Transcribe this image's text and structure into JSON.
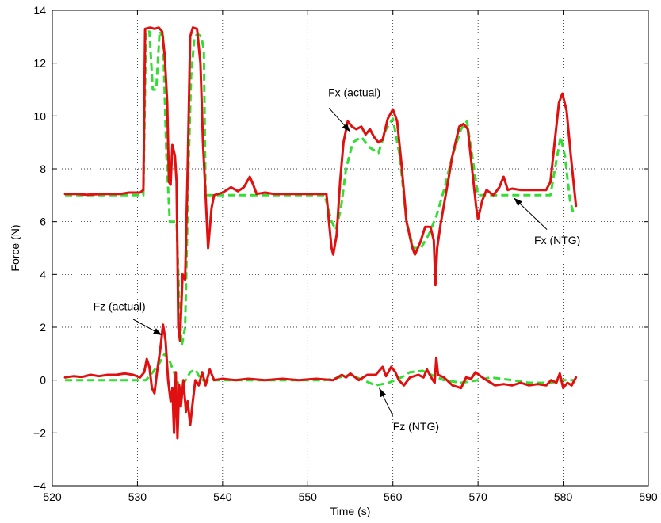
{
  "chart_data": {
    "type": "line",
    "title": "",
    "xlabel": "Time (s)",
    "ylabel": "Force (N)",
    "xlim": [
      520,
      590
    ],
    "ylim": [
      -4,
      14
    ],
    "xticks": [
      520,
      530,
      540,
      550,
      560,
      570,
      580,
      590
    ],
    "yticks": [
      -4,
      -2,
      0,
      2,
      4,
      6,
      8,
      10,
      12,
      14
    ],
    "xtick_labels": [
      "520",
      "530",
      "540",
      "550",
      "560",
      "570",
      "580",
      "590"
    ],
    "ytick_labels": [
      "−4",
      "−2",
      "0",
      "2",
      "4",
      "6",
      "8",
      "10",
      "12",
      "14"
    ],
    "grid": true,
    "legend": "none",
    "series": [
      {
        "name": "Fx (NTG)",
        "color": "#33dd33",
        "style": "dashed",
        "points": [
          [
            521.5,
            7.0
          ],
          [
            530.7,
            7.0
          ],
          [
            531.0,
            13.2
          ],
          [
            531.4,
            13.2
          ],
          [
            531.8,
            11.0
          ],
          [
            532.2,
            11.0
          ],
          [
            532.6,
            13.2
          ],
          [
            533.0,
            13.0
          ],
          [
            533.4,
            8.5
          ],
          [
            533.8,
            6.0
          ],
          [
            534.2,
            6.0
          ],
          [
            534.6,
            6.0
          ],
          [
            534.9,
            3.0
          ],
          [
            535.2,
            1.3
          ],
          [
            535.6,
            2.0
          ],
          [
            536.0,
            8.0
          ],
          [
            536.3,
            11.5
          ],
          [
            536.7,
            13.0
          ],
          [
            537.1,
            13.1
          ],
          [
            537.5,
            13.0
          ],
          [
            537.8,
            12.5
          ],
          [
            538.0,
            7.0
          ],
          [
            540.0,
            7.0
          ],
          [
            552.0,
            7.0
          ],
          [
            552.8,
            6.0
          ],
          [
            553.3,
            5.7
          ],
          [
            553.9,
            6.5
          ],
          [
            554.5,
            8.0
          ],
          [
            555.3,
            9.0
          ],
          [
            556.3,
            9.2
          ],
          [
            557.3,
            8.8
          ],
          [
            558.3,
            8.6
          ],
          [
            559.2,
            9.5
          ],
          [
            560.0,
            9.9
          ],
          [
            560.8,
            8.5
          ],
          [
            561.6,
            6.0
          ],
          [
            562.4,
            5.0
          ],
          [
            563.3,
            5.0
          ],
          [
            564.2,
            5.5
          ],
          [
            565.1,
            6.2
          ],
          [
            566.0,
            7.2
          ],
          [
            567.0,
            8.5
          ],
          [
            568.0,
            9.5
          ],
          [
            568.7,
            9.8
          ],
          [
            569.4,
            8.3
          ],
          [
            570.0,
            7.0
          ],
          [
            578.5,
            7.0
          ],
          [
            579.3,
            8.5
          ],
          [
            579.7,
            9.2
          ],
          [
            580.2,
            8.5
          ],
          [
            580.8,
            6.8
          ],
          [
            581.3,
            6.2
          ]
        ]
      },
      {
        "name": "Fx (actual)",
        "color": "#e01010",
        "style": "solid",
        "points": [
          [
            521.5,
            7.05
          ],
          [
            523.0,
            7.05
          ],
          [
            524.0,
            7.02
          ],
          [
            525.0,
            7.03
          ],
          [
            526.0,
            7.05
          ],
          [
            527.0,
            7.05
          ],
          [
            528.0,
            7.05
          ],
          [
            529.0,
            7.1
          ],
          [
            530.3,
            7.1
          ],
          [
            530.7,
            7.2
          ],
          [
            530.9,
            13.3
          ],
          [
            531.5,
            13.35
          ],
          [
            532.0,
            13.3
          ],
          [
            532.5,
            13.35
          ],
          [
            532.9,
            13.2
          ],
          [
            533.2,
            12.3
          ],
          [
            533.5,
            10.5
          ],
          [
            533.7,
            7.5
          ],
          [
            533.9,
            7.4
          ],
          [
            534.1,
            8.9
          ],
          [
            534.4,
            8.5
          ],
          [
            534.6,
            7.5
          ],
          [
            534.8,
            2.0
          ],
          [
            535.0,
            1.5
          ],
          [
            535.3,
            4.0
          ],
          [
            535.6,
            3.8
          ],
          [
            535.9,
            8.0
          ],
          [
            536.2,
            13.0
          ],
          [
            536.5,
            13.35
          ],
          [
            537.0,
            13.3
          ],
          [
            537.4,
            12.0
          ],
          [
            537.7,
            9.0
          ],
          [
            538.0,
            7.0
          ],
          [
            538.3,
            5.0
          ],
          [
            538.7,
            6.5
          ],
          [
            539.0,
            7.0
          ],
          [
            540.0,
            7.1
          ],
          [
            541.0,
            7.3
          ],
          [
            541.8,
            7.15
          ],
          [
            542.5,
            7.3
          ],
          [
            543.2,
            7.7
          ],
          [
            543.6,
            7.4
          ],
          [
            544.0,
            7.05
          ],
          [
            545.0,
            7.1
          ],
          [
            546.0,
            7.05
          ],
          [
            547.0,
            7.05
          ],
          [
            548.0,
            7.05
          ],
          [
            549.0,
            7.05
          ],
          [
            550.0,
            7.05
          ],
          [
            551.0,
            7.05
          ],
          [
            552.2,
            7.05
          ],
          [
            552.5,
            6.0
          ],
          [
            552.8,
            5.0
          ],
          [
            553.0,
            4.75
          ],
          [
            553.4,
            5.5
          ],
          [
            553.8,
            7.5
          ],
          [
            554.2,
            9.0
          ],
          [
            554.7,
            9.8
          ],
          [
            555.2,
            9.6
          ],
          [
            555.7,
            9.5
          ],
          [
            556.3,
            9.6
          ],
          [
            556.8,
            9.3
          ],
          [
            557.3,
            9.5
          ],
          [
            557.8,
            9.2
          ],
          [
            558.3,
            9.0
          ],
          [
            558.8,
            9.1
          ],
          [
            559.4,
            9.9
          ],
          [
            560.0,
            10.25
          ],
          [
            560.5,
            9.8
          ],
          [
            561.0,
            8.2
          ],
          [
            561.6,
            6.0
          ],
          [
            562.3,
            5.0
          ],
          [
            562.6,
            4.75
          ],
          [
            563.2,
            5.2
          ],
          [
            563.8,
            5.8
          ],
          [
            564.4,
            5.8
          ],
          [
            564.8,
            5.3
          ],
          [
            565.0,
            3.6
          ],
          [
            565.2,
            5.0
          ],
          [
            565.6,
            5.9
          ],
          [
            566.2,
            7.0
          ],
          [
            567.0,
            8.5
          ],
          [
            567.8,
            9.6
          ],
          [
            568.3,
            9.7
          ],
          [
            568.8,
            9.5
          ],
          [
            569.3,
            8.0
          ],
          [
            569.8,
            6.5
          ],
          [
            570.0,
            6.1
          ],
          [
            570.5,
            6.8
          ],
          [
            571.0,
            7.2
          ],
          [
            571.8,
            7.0
          ],
          [
            572.5,
            7.3
          ],
          [
            573.0,
            7.7
          ],
          [
            573.5,
            7.2
          ],
          [
            574.0,
            7.25
          ],
          [
            575.0,
            7.2
          ],
          [
            576.0,
            7.2
          ],
          [
            577.0,
            7.2
          ],
          [
            578.0,
            7.2
          ],
          [
            578.5,
            7.5
          ],
          [
            579.0,
            9.0
          ],
          [
            579.5,
            10.5
          ],
          [
            579.9,
            10.85
          ],
          [
            580.4,
            10.2
          ],
          [
            580.9,
            8.5
          ],
          [
            581.5,
            6.6
          ]
        ]
      },
      {
        "name": "Fz (NTG)",
        "color": "#33dd33",
        "style": "dashed",
        "points": [
          [
            521.5,
            0.0
          ],
          [
            531.0,
            0.0
          ],
          [
            531.8,
            0.3
          ],
          [
            532.5,
            0.6
          ],
          [
            533.2,
            1.0
          ],
          [
            533.8,
            0.7
          ],
          [
            534.4,
            0.2
          ],
          [
            535.0,
            -0.3
          ],
          [
            535.5,
            -0.1
          ],
          [
            536.2,
            0.3
          ],
          [
            536.8,
            0.4
          ],
          [
            537.5,
            0.0
          ],
          [
            540.0,
            0.0
          ],
          [
            552.0,
            0.0
          ],
          [
            553.0,
            0.05
          ],
          [
            555.0,
            0.2
          ],
          [
            556.5,
            0.0
          ],
          [
            558.0,
            -0.2
          ],
          [
            559.5,
            -0.1
          ],
          [
            561.0,
            0.1
          ],
          [
            562.0,
            0.3
          ],
          [
            563.5,
            0.35
          ],
          [
            564.5,
            0.2
          ],
          [
            566.0,
            0.0
          ],
          [
            568.0,
            -0.1
          ],
          [
            570.0,
            0.0
          ],
          [
            571.5,
            0.1
          ],
          [
            574.0,
            0.0
          ],
          [
            576.0,
            -0.1
          ],
          [
            578.5,
            -0.1
          ],
          [
            580.0,
            0.0
          ],
          [
            581.3,
            0.0
          ]
        ]
      },
      {
        "name": "Fz (actual)",
        "color": "#e01010",
        "style": "solid",
        "points": [
          [
            521.5,
            0.1
          ],
          [
            522.5,
            0.15
          ],
          [
            523.5,
            0.12
          ],
          [
            524.5,
            0.2
          ],
          [
            525.5,
            0.15
          ],
          [
            526.5,
            0.2
          ],
          [
            527.5,
            0.2
          ],
          [
            528.5,
            0.25
          ],
          [
            529.5,
            0.2
          ],
          [
            530.3,
            0.1
          ],
          [
            530.8,
            0.3
          ],
          [
            531.1,
            0.8
          ],
          [
            531.4,
            0.5
          ],
          [
            531.7,
            -0.3
          ],
          [
            532.0,
            -0.5
          ],
          [
            532.3,
            0.3
          ],
          [
            532.7,
            1.2
          ],
          [
            533.0,
            2.1
          ],
          [
            533.3,
            1.5
          ],
          [
            533.6,
            0.0
          ],
          [
            533.9,
            -0.8
          ],
          [
            534.1,
            -0.3
          ],
          [
            534.3,
            -2.0
          ],
          [
            534.5,
            0.3
          ],
          [
            534.7,
            -2.2
          ],
          [
            534.9,
            -0.2
          ],
          [
            535.1,
            -1.0
          ],
          [
            535.4,
            0.0
          ],
          [
            535.7,
            -1.2
          ],
          [
            535.9,
            -0.8
          ],
          [
            536.2,
            -1.7
          ],
          [
            536.5,
            -0.8
          ],
          [
            536.8,
            0.0
          ],
          [
            537.2,
            -0.2
          ],
          [
            537.6,
            0.3
          ],
          [
            538.0,
            -0.2
          ],
          [
            538.5,
            0.4
          ],
          [
            539.0,
            0.0
          ],
          [
            540.0,
            0.05
          ],
          [
            541.5,
            0.0
          ],
          [
            543.0,
            0.05
          ],
          [
            545.0,
            0.0
          ],
          [
            547.0,
            0.05
          ],
          [
            549.0,
            0.0
          ],
          [
            551.0,
            0.05
          ],
          [
            553.0,
            0.0
          ],
          [
            554.0,
            0.2
          ],
          [
            554.5,
            0.1
          ],
          [
            555.0,
            0.25
          ],
          [
            556.0,
            0.0
          ],
          [
            557.0,
            0.2
          ],
          [
            558.0,
            0.2
          ],
          [
            558.8,
            0.5
          ],
          [
            559.2,
            0.15
          ],
          [
            559.8,
            0.5
          ],
          [
            560.3,
            0.3
          ],
          [
            560.7,
            0.0
          ],
          [
            561.3,
            -0.2
          ],
          [
            562.0,
            0.1
          ],
          [
            563.0,
            0.2
          ],
          [
            563.6,
            0.1
          ],
          [
            564.0,
            0.4
          ],
          [
            564.6,
            0.05
          ],
          [
            564.9,
            -0.1
          ],
          [
            565.1,
            0.85
          ],
          [
            565.3,
            0.2
          ],
          [
            566.0,
            0.1
          ],
          [
            567.0,
            -0.2
          ],
          [
            568.0,
            -0.3
          ],
          [
            568.6,
            0.1
          ],
          [
            569.2,
            0.05
          ],
          [
            569.7,
            0.3
          ],
          [
            570.3,
            0.15
          ],
          [
            571.0,
            0.0
          ],
          [
            572.0,
            -0.2
          ],
          [
            573.0,
            -0.15
          ],
          [
            574.0,
            -0.2
          ],
          [
            575.0,
            -0.1
          ],
          [
            576.0,
            -0.2
          ],
          [
            577.0,
            -0.15
          ],
          [
            578.0,
            -0.2
          ],
          [
            578.6,
            0.0
          ],
          [
            579.2,
            -0.1
          ],
          [
            579.6,
            0.25
          ],
          [
            580.0,
            -0.3
          ],
          [
            580.5,
            -0.1
          ],
          [
            581.0,
            -0.2
          ],
          [
            581.5,
            0.1
          ]
        ]
      }
    ],
    "annotations": [
      {
        "text": "Fx (actual)",
        "text_x": 552.4,
        "text_y": 10.75,
        "arrow_from": [
          552.5,
          10.3
        ],
        "arrow_to": [
          555.0,
          9.4
        ]
      },
      {
        "text": "Fx (NTG)",
        "text_x": 576.6,
        "text_y": 5.15,
        "arrow_from": [
          578.1,
          5.7
        ],
        "arrow_to": [
          574.2,
          6.9
        ]
      },
      {
        "text": "Fz (actual)",
        "text_x": 524.8,
        "text_y": 2.65,
        "arrow_from": [
          529.5,
          2.3
        ],
        "arrow_to": [
          532.9,
          1.7
        ]
      },
      {
        "text": "Fz (NTG)",
        "text_x": 560.0,
        "text_y": -1.9,
        "arrow_from": [
          560.0,
          -1.35
        ],
        "arrow_to": [
          558.4,
          -0.3
        ]
      }
    ]
  }
}
